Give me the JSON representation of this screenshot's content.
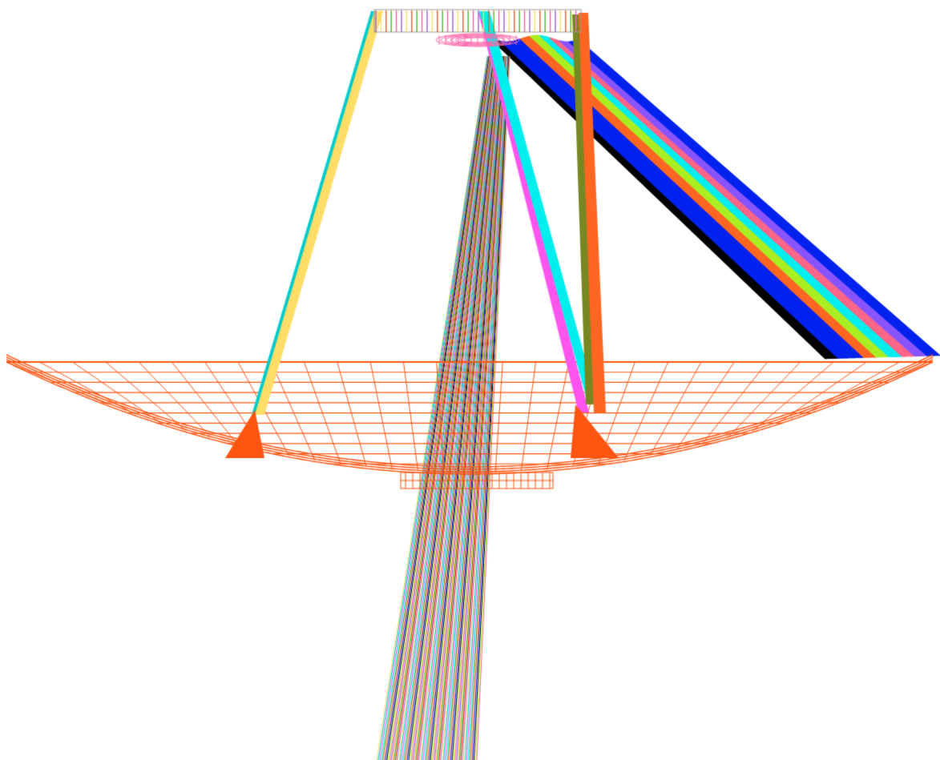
{
  "diagram": {
    "kind": "ray-trace-wireframe",
    "background_color": "#ffffff",
    "colors": {
      "dish": "#ff5511",
      "dish_feet": "#ff5511",
      "secondary_mirror": "#ff66aa",
      "ray_palette": [
        "#ffdd66",
        "#00cccc",
        "#ff55ee",
        "#00eeee",
        "#778822",
        "#ff6622",
        "#0022ee",
        "#000000",
        "#aaee22",
        "#ff6688",
        "#8855ff",
        "#ffaa00",
        "#22aa22",
        "#ff0000",
        "#9966cc"
      ]
    },
    "structures": [
      {
        "name": "primary-dish",
        "type": "paraboloid-wireframe"
      },
      {
        "name": "secondary-mirror",
        "type": "ellipsoid-wireframe"
      },
      {
        "name": "receiver-cabin",
        "type": "box-wireframe"
      },
      {
        "name": "support-feet",
        "type": "triangles",
        "count": 2
      },
      {
        "name": "focal-plane-array",
        "type": "striped-bar"
      }
    ],
    "beam_groups": [
      "left-yellow-beam",
      "right-cyan-beam",
      "right-magenta-beam",
      "olive-beam",
      "orange-beam",
      "oblique-fan",
      "exit-fan"
    ]
  }
}
